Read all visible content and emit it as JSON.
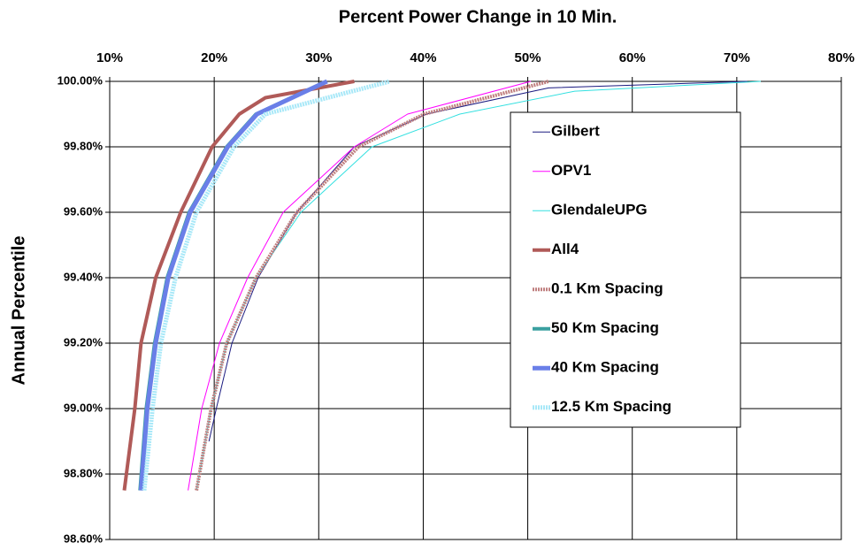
{
  "chart_data": {
    "type": "line",
    "title": "Percent Power Change in 10 Min.",
    "y_label": "Annual Percentile",
    "xlim": [
      10,
      80
    ],
    "xticks": [
      {
        "value": 10,
        "label": "10%"
      },
      {
        "value": 20,
        "label": "20%"
      },
      {
        "value": 30,
        "label": "30%"
      },
      {
        "value": 40,
        "label": "40%"
      },
      {
        "value": 50,
        "label": "50%"
      },
      {
        "value": 60,
        "label": "60%"
      },
      {
        "value": 70,
        "label": "70%"
      },
      {
        "value": 80,
        "label": "80%"
      }
    ],
    "ylim": [
      98.6,
      100
    ],
    "yticks": [
      {
        "value": 98.6,
        "label": "98.60%"
      },
      {
        "value": 98.8,
        "label": "98.80%"
      },
      {
        "value": 99.0,
        "label": "99.00%"
      },
      {
        "value": 99.2,
        "label": "99.20%"
      },
      {
        "value": 99.4,
        "label": "99.40%"
      },
      {
        "value": 99.6,
        "label": "99.60%"
      },
      {
        "value": 99.8,
        "label": "99.80%"
      },
      {
        "value": 100,
        "label": "100.00%"
      }
    ],
    "grid": true,
    "legend": "right",
    "series": [
      {
        "name": "Gilbert",
        "color": "#1a1a80",
        "x": [
          19.5,
          20.2,
          21.7,
          24.2,
          27.9,
          33.4,
          40.3,
          52,
          71
        ],
        "values": [
          98.9,
          99.0,
          99.2,
          99.4,
          99.6,
          99.8,
          99.9,
          99.98,
          100
        ]
      },
      {
        "name": "OPV1",
        "color": "#ff00ff",
        "x": [
          17.5,
          18.8,
          20.5,
          23.2,
          26.6,
          33.4,
          38.5,
          50.3
        ],
        "values": [
          98.75,
          99.0,
          99.2,
          99.4,
          99.6,
          99.8,
          99.9,
          100
        ]
      },
      {
        "name": "GlendaleUPG",
        "color": "#33e0e0",
        "x": [
          18.3,
          19.7,
          21.2,
          24.0,
          28.3,
          35.1,
          43.5,
          54.5,
          72.3
        ],
        "values": [
          98.75,
          99.0,
          99.2,
          99.4,
          99.6,
          99.8,
          99.9,
          99.97,
          100
        ]
      },
      {
        "name": "All4",
        "color": "#b05a58",
        "x": [
          11.4,
          12.4,
          13.0,
          14.4,
          16.8,
          19.8,
          22.4,
          24.9,
          33.4
        ],
        "values": [
          98.75,
          99.0,
          99.2,
          99.4,
          99.6,
          99.8,
          99.9,
          99.95,
          100
        ]
      },
      {
        "name": "0.1 Km Spacing",
        "color": "#c08080",
        "x": [
          18.3,
          19.7,
          21.2,
          24.0,
          27.9,
          33.8,
          40.1,
          52
        ],
        "values": [
          98.75,
          99.0,
          99.2,
          99.4,
          99.6,
          99.8,
          99.9,
          100
        ]
      },
      {
        "name": "50 Km Spacing",
        "color": "#3aa0a0",
        "x": [
          12.9,
          13.5,
          14.3,
          15.5,
          17.6,
          21.2,
          24.0,
          30.7
        ],
        "values": [
          98.75,
          99.0,
          99.2,
          99.4,
          99.6,
          99.8,
          99.9,
          100
        ]
      },
      {
        "name": "40 Km Spacing",
        "color": "#6a7fe8",
        "x": [
          13.0,
          13.6,
          14.4,
          15.6,
          17.7,
          21.3,
          24.1,
          30.8
        ],
        "values": [
          98.75,
          99.0,
          99.2,
          99.4,
          99.6,
          99.8,
          99.9,
          100
        ]
      },
      {
        "name": "12.5 Km Spacing",
        "color": "#a8e8f8",
        "x": [
          13.3,
          14.1,
          14.9,
          16.3,
          18.3,
          21.9,
          24.9,
          36.8
        ],
        "values": [
          98.75,
          99.0,
          99.2,
          99.4,
          99.6,
          99.8,
          99.9,
          100
        ]
      }
    ]
  }
}
